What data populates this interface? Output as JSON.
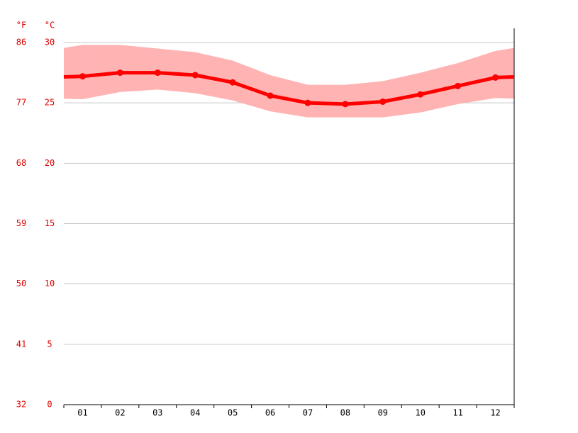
{
  "chart_data": {
    "type": "line",
    "y_unit": "°C",
    "y2_unit": "°F",
    "categories": [
      "01",
      "02",
      "03",
      "04",
      "05",
      "06",
      "07",
      "08",
      "09",
      "10",
      "11",
      "12"
    ],
    "series": [
      {
        "color": "#ff0000",
        "values": [
          27.2,
          27.5,
          27.5,
          27.3,
          26.7,
          25.6,
          25.0,
          24.9,
          25.1,
          25.7,
          26.4,
          27.1
        ]
      }
    ],
    "band": {
      "color": "#ffb3b3",
      "high": [
        29.8,
        29.8,
        29.5,
        29.2,
        28.5,
        27.3,
        26.5,
        26.5,
        26.8,
        27.5,
        28.3,
        29.3
      ],
      "low": [
        25.3,
        25.9,
        26.1,
        25.8,
        25.2,
        24.3,
        23.8,
        23.8,
        23.8,
        24.2,
        24.9,
        25.4
      ]
    },
    "ylim": [
      0,
      30
    ],
    "yticks": [
      0,
      5,
      10,
      15,
      20,
      25,
      30
    ],
    "y2lim": [
      32,
      86
    ],
    "y2ticks": [
      32,
      41,
      50,
      59,
      68,
      77,
      86
    ],
    "grid": true
  }
}
